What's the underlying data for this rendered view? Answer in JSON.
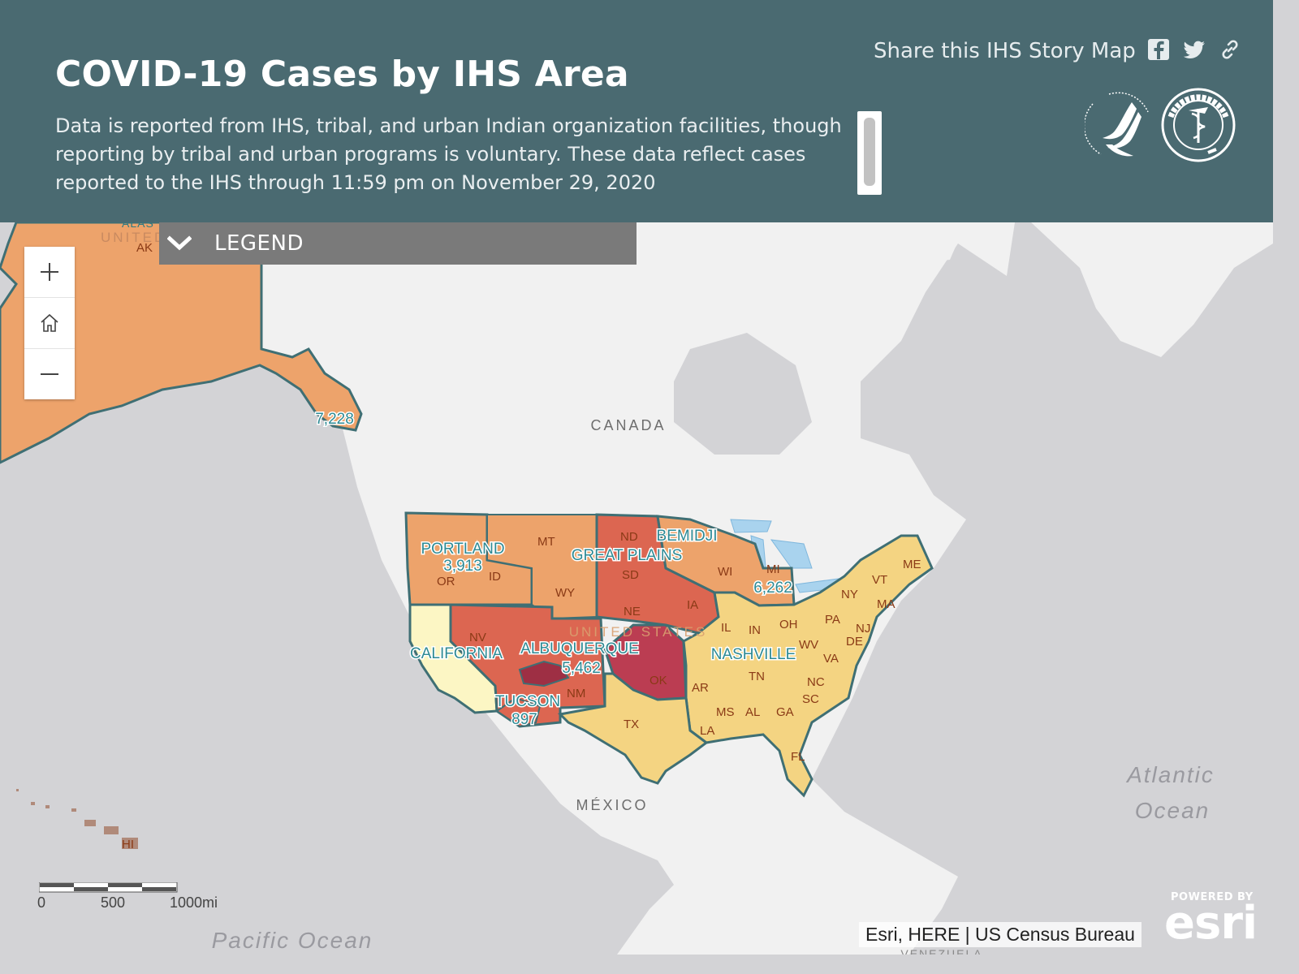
{
  "header": {
    "title": "COVID-19 Cases by IHS Area",
    "description": "Data is reported from IHS, tribal, and urban Indian organization facilities, though reporting by tribal and urban programs is voluntary. These data reflect cases reported to the IHS through 11:59 pm on November 29, 2020",
    "share_label": "Share this IHS Story Map",
    "share_icons": [
      "facebook-icon",
      "twitter-icon",
      "link-icon"
    ]
  },
  "legend": {
    "label": "LEGEND"
  },
  "zoom": {
    "zoom_in": "+",
    "home": "home-icon",
    "zoom_out": "−"
  },
  "basemap_labels": {
    "canada": "CANADA",
    "mexico": "MÉXICO",
    "united_states": "UNITED STATES",
    "united_ak": "UNITED",
    "alaska_partial": "ALAS",
    "pacific": "Pacific Ocean",
    "atlantic_1": "Atlantic",
    "atlantic_2": "Ocean",
    "venezuela": "VENEZUELA"
  },
  "areas": [
    {
      "name": "PORTLAND",
      "cases": "3,913"
    },
    {
      "name": "CALIFORNIA",
      "cases": ""
    },
    {
      "name": "ALBUQUERQUE",
      "cases": "5,462"
    },
    {
      "name": "TUCSON",
      "cases": "897"
    },
    {
      "name": "GREAT PLAINS",
      "cases": ""
    },
    {
      "name": "BEMIDJI",
      "cases": "6,262"
    },
    {
      "name": "NASHVILLE",
      "cases": ""
    },
    {
      "name": "ALASKA",
      "cases": "7,228"
    }
  ],
  "state_labels": [
    "AK",
    "MT",
    "ND",
    "OR",
    "ID",
    "WY",
    "SD",
    "NE",
    "IA",
    "WI",
    "MI",
    "NY",
    "VT",
    "ME",
    "MA",
    "PA",
    "NJ",
    "DE",
    "OH",
    "IN",
    "IL",
    "WV",
    "VA",
    "NV",
    "OK",
    "NM",
    "TX",
    "AR",
    "TN",
    "NC",
    "SC",
    "MS",
    "AL",
    "GA",
    "LA",
    "FL",
    "HI"
  ],
  "colors": {
    "header_bg": "#4a6a71",
    "legend_bg": "#7a7a7a",
    "land": "#f1f1f1",
    "water": "#d3d3d6",
    "lakes": "#a9d3ee",
    "area_border": "#3f6f74",
    "alaska_portland_bemidji": "#eda36b",
    "great_plains": "#dc6651",
    "albuquerque_nv": "#dc6651",
    "oklahoma": "#bb3d52",
    "nashville": "#f4d482",
    "california": "#fcf6c4"
  },
  "scalebar": {
    "labels": [
      "0",
      "500",
      "1000mi"
    ]
  },
  "attribution": "Esri, HERE | US Census Bureau",
  "esri_logo": {
    "powered_by": "POWERED BY",
    "brand": "esri"
  }
}
